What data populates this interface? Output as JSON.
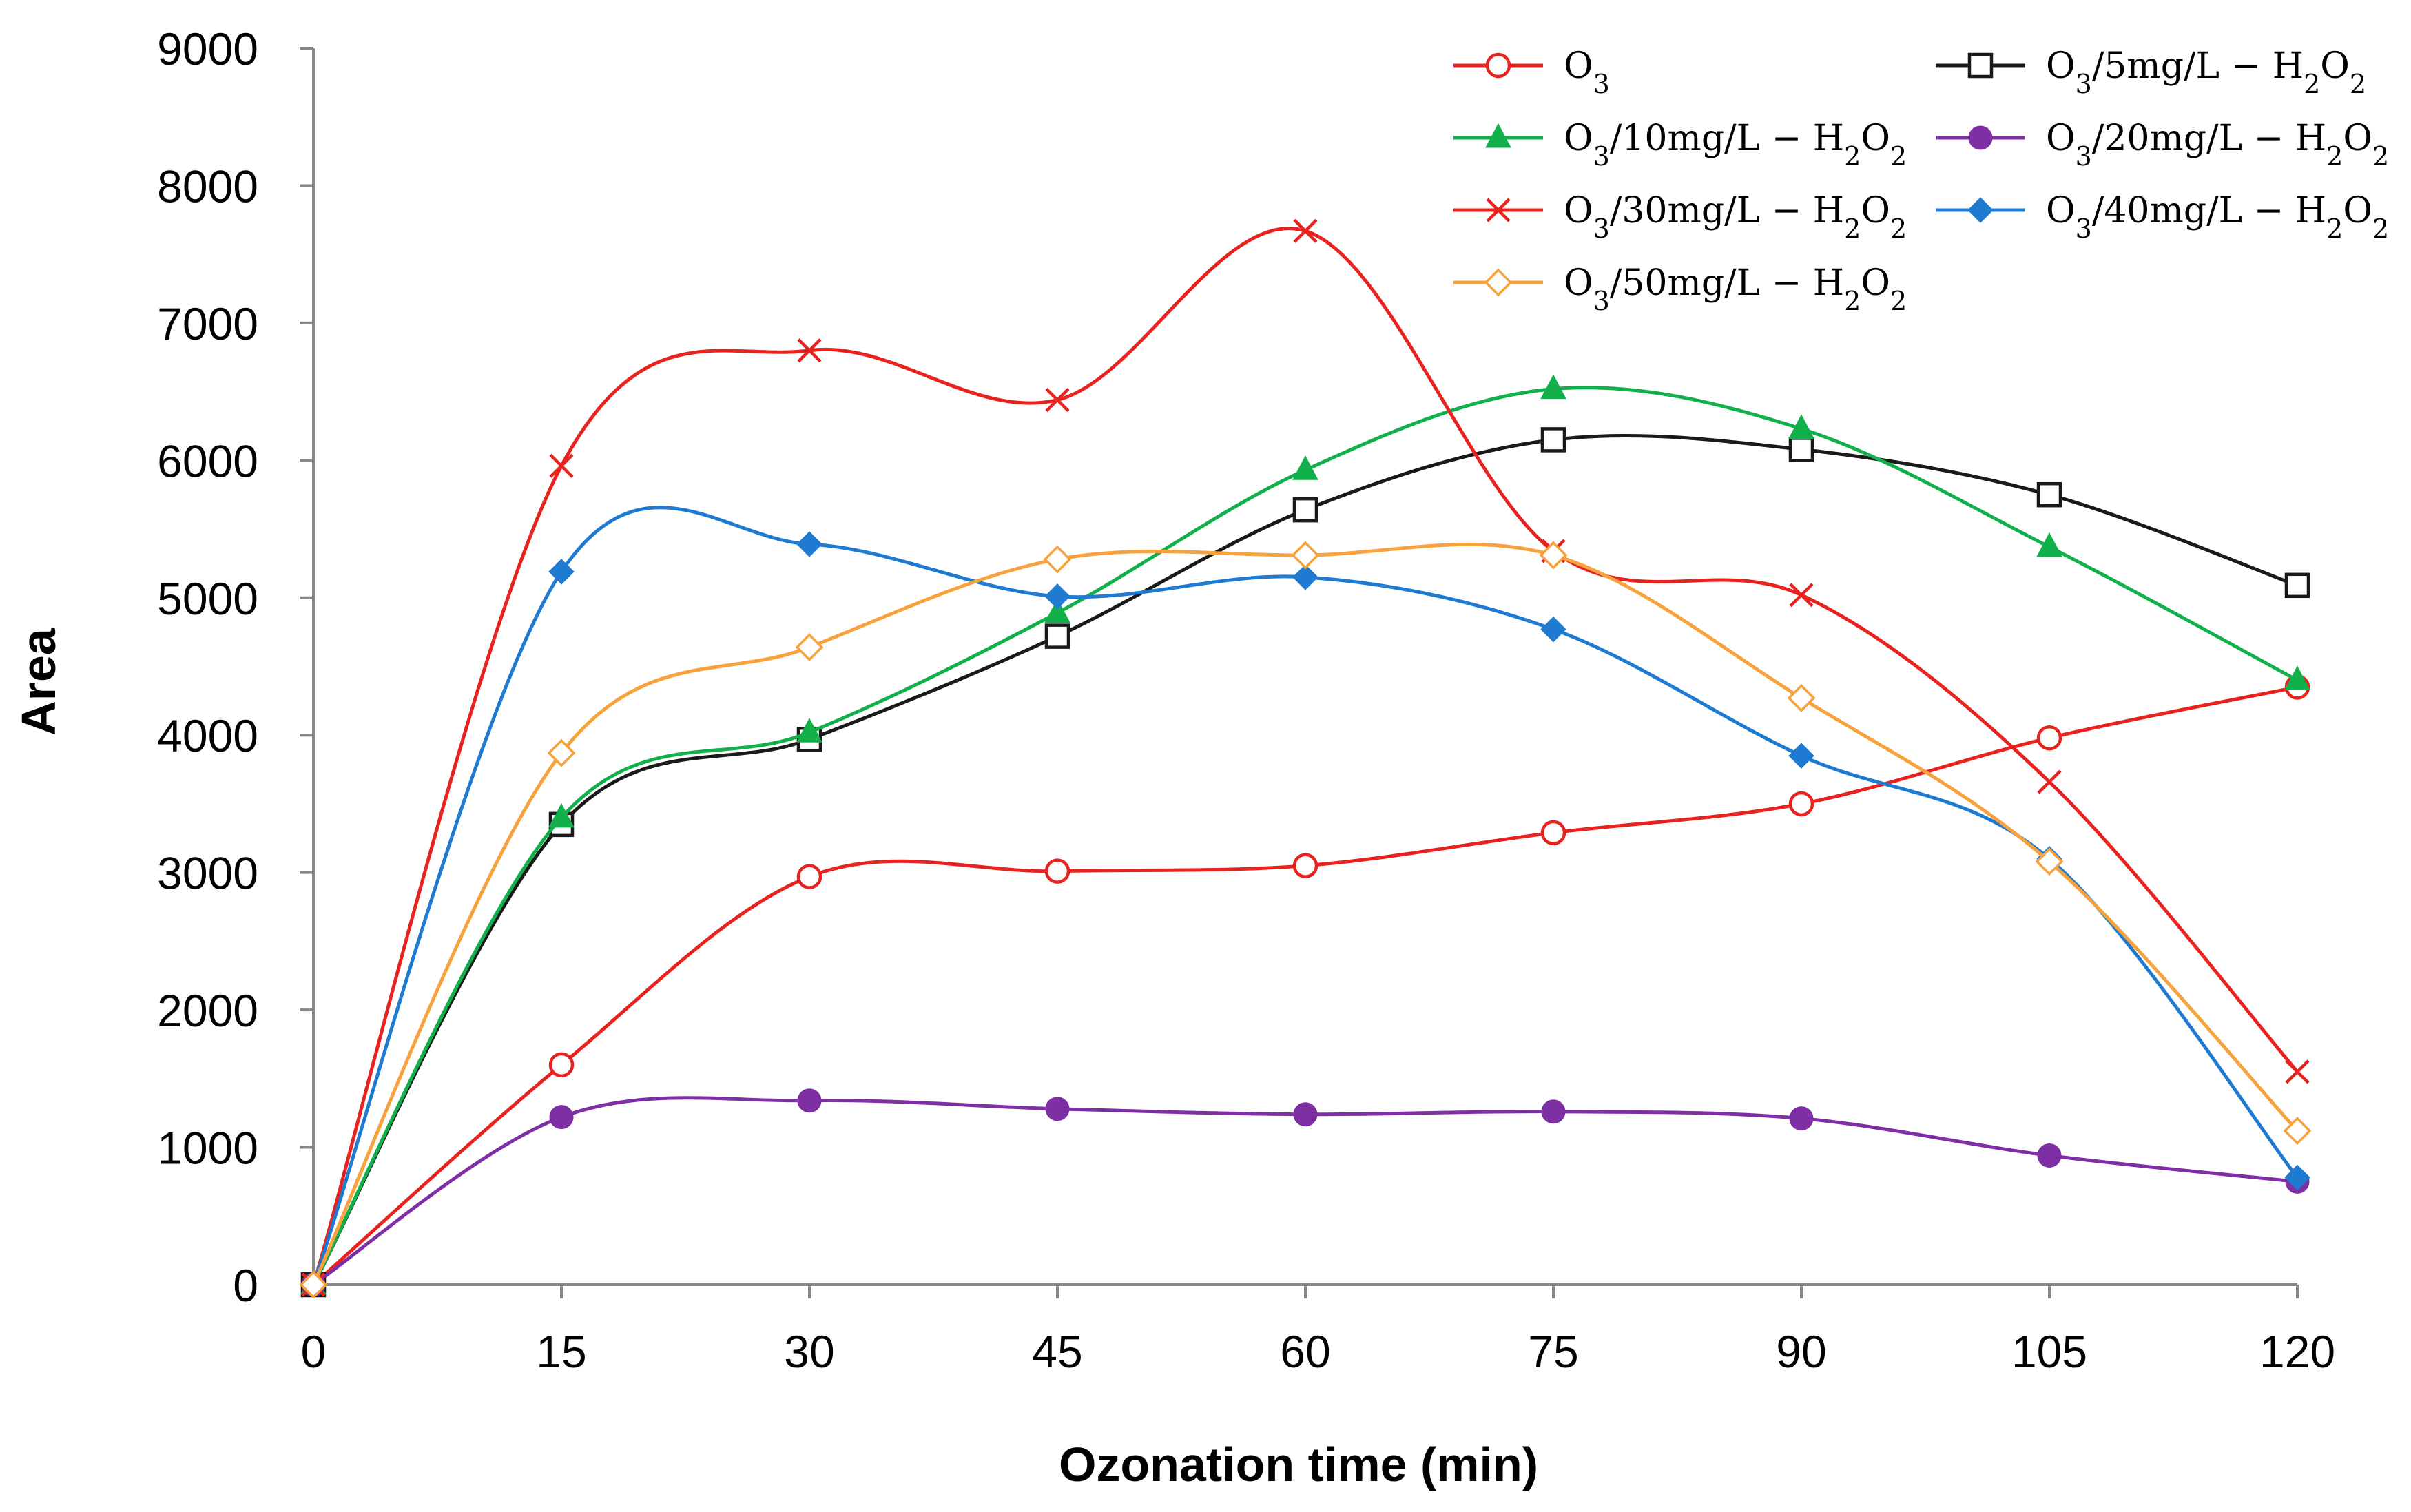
{
  "chart_data": {
    "type": "line",
    "title": "",
    "xlabel": "Ozonation time (min)",
    "ylabel": "Area",
    "xlim": [
      0,
      120
    ],
    "ylim": [
      0,
      9000
    ],
    "x": [
      0,
      15,
      30,
      45,
      60,
      75,
      90,
      105,
      120
    ],
    "xticks": [
      0,
      15,
      30,
      45,
      60,
      75,
      90,
      105,
      120
    ],
    "yticks": [
      0,
      1000,
      2000,
      3000,
      4000,
      5000,
      6000,
      7000,
      8000,
      9000
    ],
    "grid": false,
    "legend_position": "top-right",
    "series": [
      {
        "name": "O3",
        "label_parts": [
          "O",
          "3",
          ""
        ],
        "marker": "circle-open",
        "color": "#e8231f",
        "values": [
          0,
          1600,
          2970,
          3010,
          3050,
          3290,
          3500,
          3980,
          4350
        ]
      },
      {
        "name": "O3/5mg/L − H2O2",
        "label_parts": [
          "O",
          "3",
          "/5mg/L − H",
          "2",
          "O",
          "2",
          ""
        ],
        "marker": "square-open",
        "color": "#1a1a1a",
        "values": [
          0,
          3350,
          3970,
          4720,
          5640,
          6150,
          6080,
          5750,
          5090
        ]
      },
      {
        "name": "O3/10mg/L − H2O2",
        "label_parts": [
          "O",
          "3",
          "/10mg/L − H",
          "2",
          "O",
          "2",
          ""
        ],
        "marker": "triangle",
        "color": "#12b04b",
        "values": [
          0,
          3400,
          4020,
          4890,
          5930,
          6520,
          6230,
          5370,
          4400
        ]
      },
      {
        "name": "O3/20mg/L − H2O2",
        "label_parts": [
          "O",
          "3",
          "/20mg/L − H",
          "2",
          "O",
          "2",
          ""
        ],
        "marker": "circle",
        "color": "#7e2fa3",
        "values": [
          0,
          1220,
          1340,
          1280,
          1240,
          1260,
          1210,
          940,
          750
        ]
      },
      {
        "name": "O3/30mg/L − H2O2",
        "label_parts": [
          "O",
          "3",
          "/30mg/L − H",
          "2",
          "O",
          "2",
          ""
        ],
        "marker": "x",
        "color": "#e8231f",
        "values": [
          0,
          5960,
          6800,
          6440,
          7670,
          5340,
          5020,
          3660,
          1550
        ]
      },
      {
        "name": "O3/40mg/L − H2O2",
        "label_parts": [
          "O",
          "3",
          "/40mg/L − H",
          "2",
          "O",
          "2",
          ""
        ],
        "marker": "diamond",
        "color": "#1f7ad1",
        "values": [
          0,
          5190,
          5390,
          5010,
          5150,
          4770,
          3850,
          3100,
          780
        ]
      },
      {
        "name": "O3/50mg/L − H2O2",
        "label_parts": [
          "O",
          "3",
          "/50mg/L − H",
          "2",
          "O",
          "2",
          ""
        ],
        "marker": "diamond-open",
        "color": "#f7a23c",
        "values": [
          0,
          3870,
          4640,
          5280,
          5310,
          5310,
          4270,
          3080,
          1120
        ]
      }
    ]
  }
}
